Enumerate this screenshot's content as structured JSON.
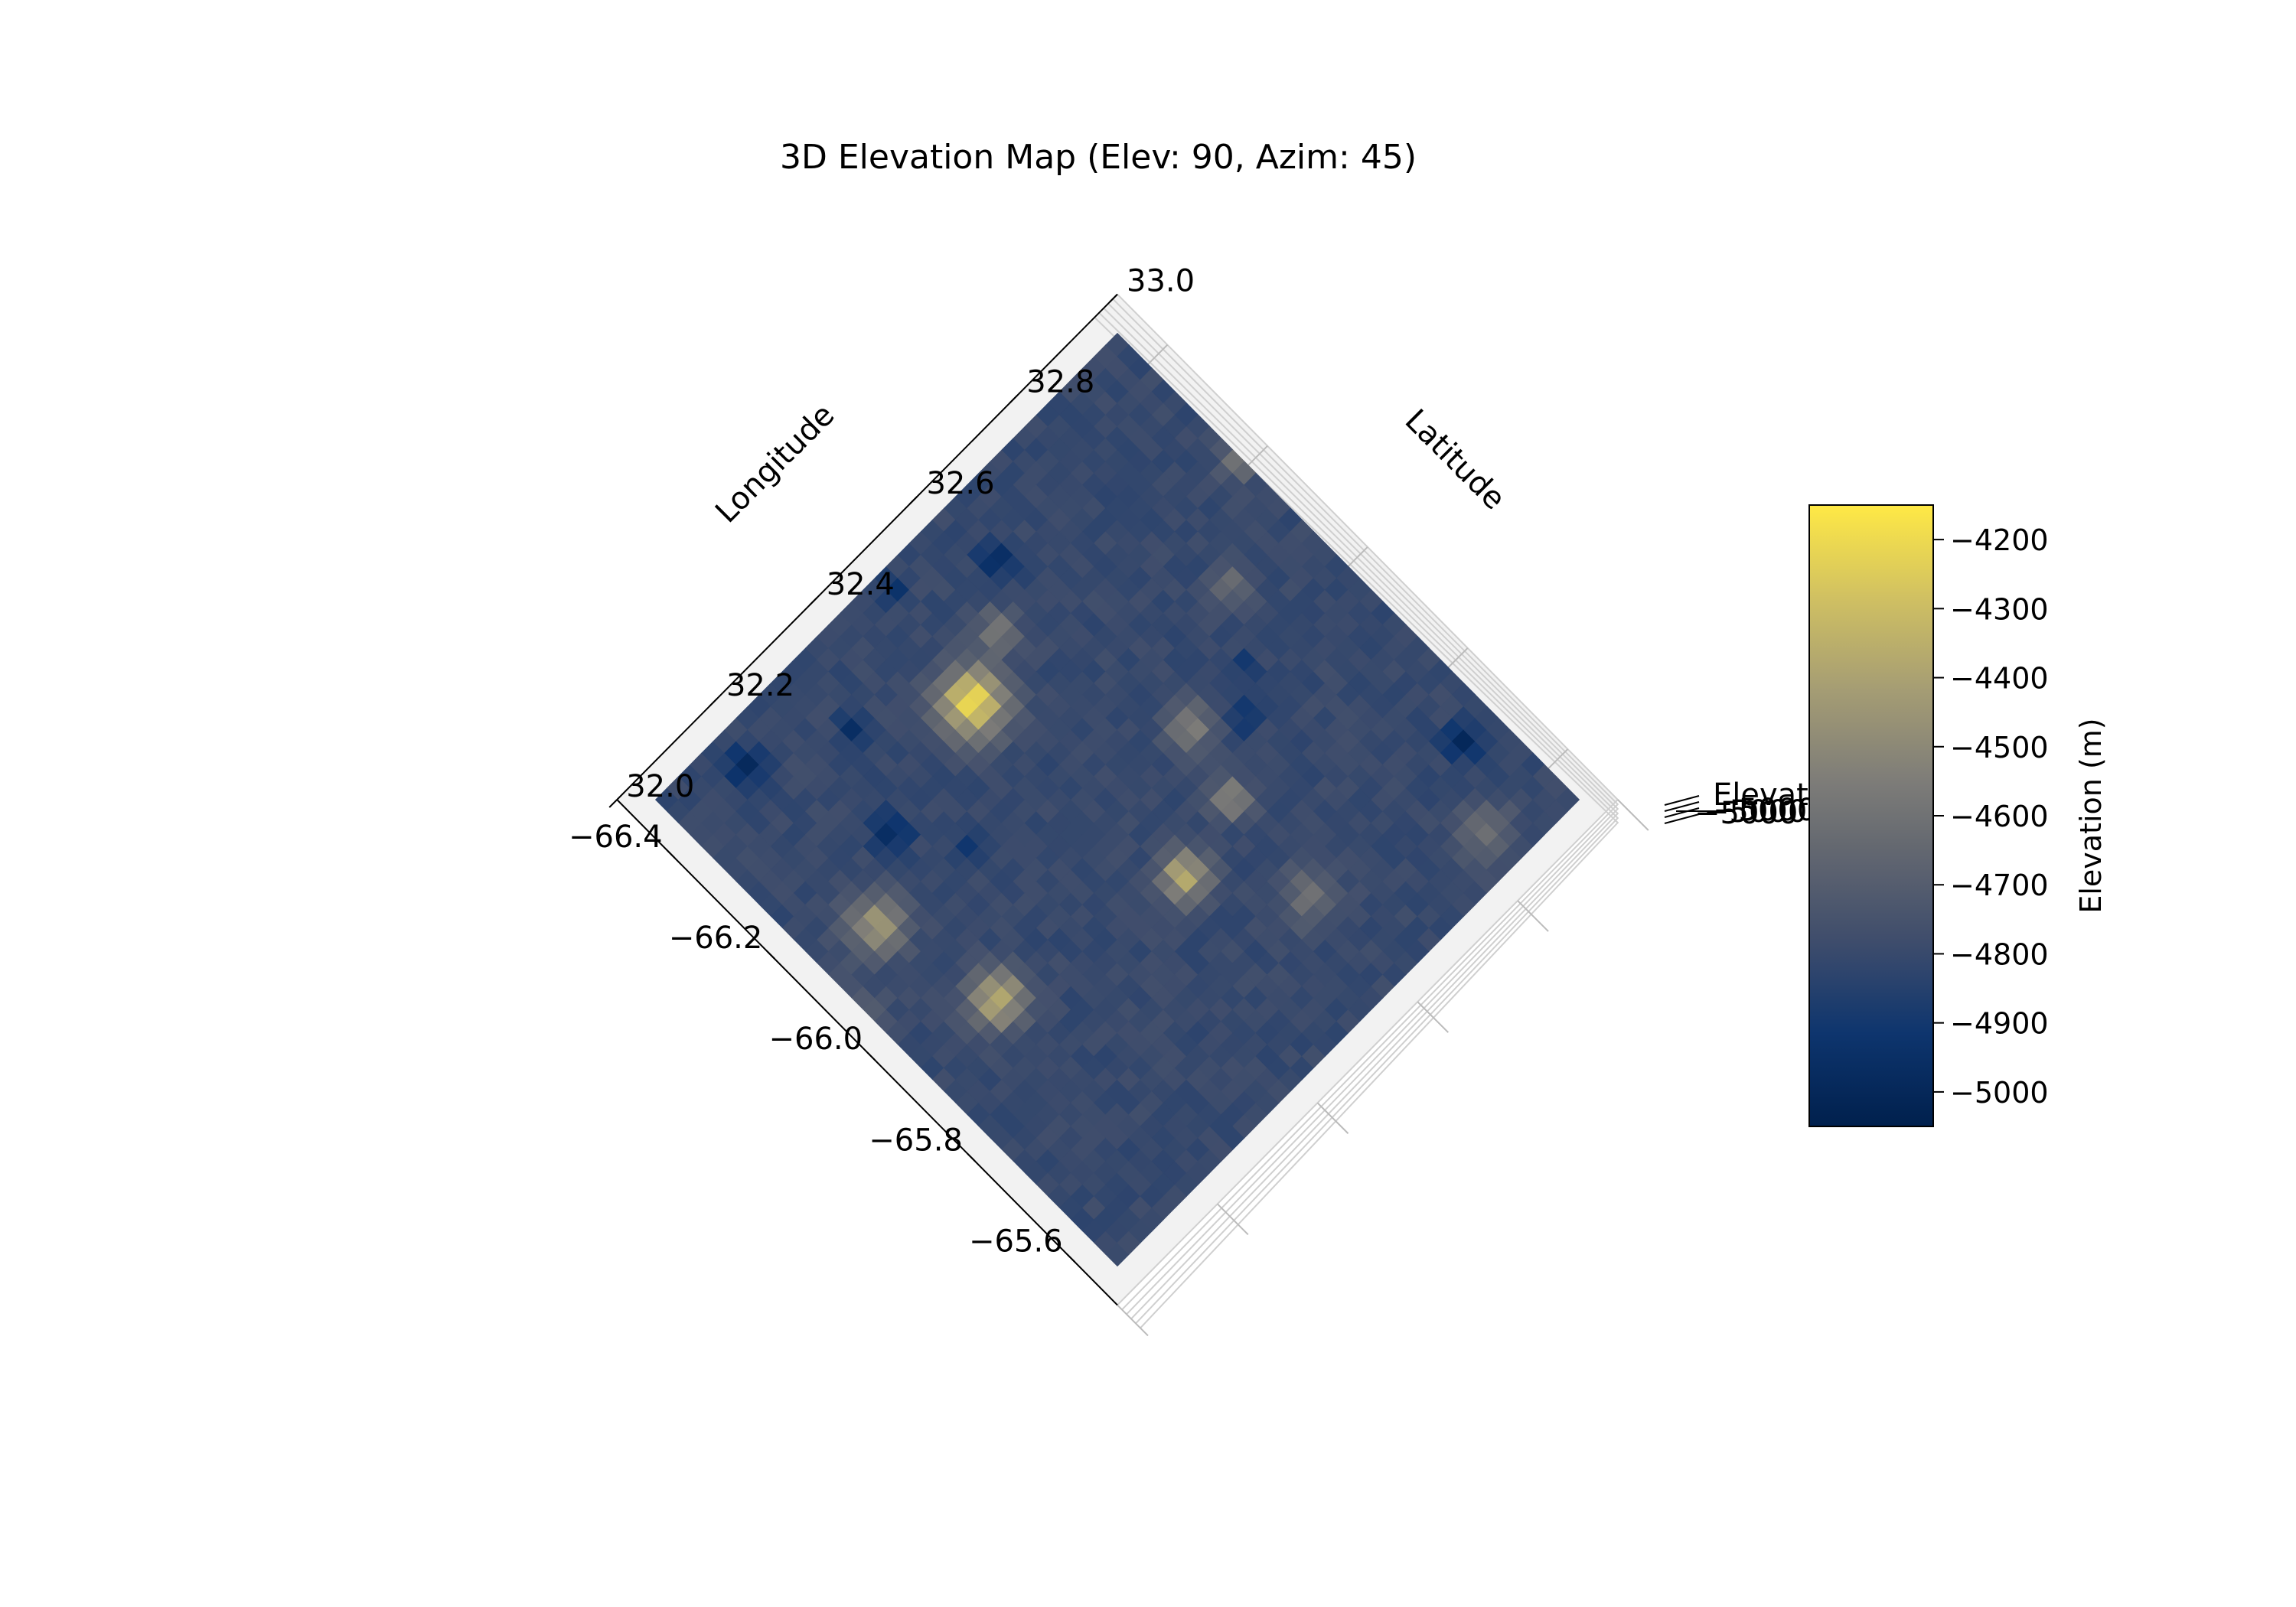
{
  "chart_data": {
    "type": "surface3d",
    "title": "3D Elevation Map (Elev: 90, Azim: 45)",
    "view": {
      "elev": 90,
      "azim": 45
    },
    "colormap": "cividis",
    "grid": true,
    "axes": {
      "longitude": {
        "label": "Longitude",
        "range": [
          -66.5,
          -65.5
        ],
        "ticks": [
          -66.4,
          -66.2,
          -66.0,
          -65.8,
          -65.6
        ],
        "tick_labels": [
          "−66.4",
          "−66.2",
          "−66.0",
          "−65.8",
          "−65.6"
        ]
      },
      "latitude": {
        "label": "Latitude",
        "range": [
          32.0,
          33.0
        ],
        "ticks": [
          32.0,
          32.2,
          32.4,
          32.6,
          32.8,
          33.0
        ],
        "tick_labels": [
          "32.0",
          "32.2",
          "32.4",
          "32.6",
          "32.8",
          "33.0"
        ]
      },
      "elevation": {
        "label": "Elevat",
        "visible_tick_text": "−5000",
        "range": [
          -5050,
          -4150
        ]
      }
    },
    "colorbar": {
      "label": "Elevation (m)",
      "range": [
        -5050,
        -4150
      ],
      "ticks": [
        -4200,
        -4300,
        -4400,
        -4500,
        -4600,
        -4700,
        -4800,
        -4900,
        -5000
      ],
      "tick_labels": [
        "−4200",
        "−4300",
        "−4400",
        "−4500",
        "−4600",
        "−4700",
        "−4800",
        "−4900",
        "−5000"
      ]
    },
    "surface": {
      "base_elevation": -4800,
      "features": [
        {
          "lon": -66.25,
          "lat": 32.45,
          "elevation": -4180,
          "spread": 0.035
        },
        {
          "lon": -65.92,
          "lat": 32.17,
          "elevation": -4350,
          "spread": 0.03
        },
        {
          "lon": -65.85,
          "lat": 32.49,
          "elevation": -4340,
          "spread": 0.025
        },
        {
          "lon": -66.12,
          "lat": 32.12,
          "elevation": -4440,
          "spread": 0.03
        },
        {
          "lon": -66.0,
          "lat": 32.65,
          "elevation": -4530,
          "spread": 0.025
        },
        {
          "lon": -66.1,
          "lat": 32.84,
          "elevation": -4600,
          "spread": 0.02
        },
        {
          "lon": -65.88,
          "lat": 32.62,
          "elevation": -4500,
          "spread": 0.02
        },
        {
          "lon": -66.3,
          "lat": 32.55,
          "elevation": -4550,
          "spread": 0.02
        },
        {
          "lon": -66.22,
          "lat": 32.98,
          "elevation": -4560,
          "spread": 0.02
        },
        {
          "lon": -65.7,
          "lat": 32.6,
          "elevation": -4620,
          "spread": 0.03
        },
        {
          "lon": -65.58,
          "lat": 32.85,
          "elevation": -4630,
          "spread": 0.03
        },
        {
          "lon": -66.05,
          "lat": 32.0,
          "elevation": -4650,
          "spread": 0.03
        },
        {
          "lon": -66.42,
          "lat": 32.15,
          "elevation": -4990,
          "spread": 0.02
        },
        {
          "lon": -66.2,
          "lat": 32.23,
          "elevation": -4980,
          "spread": 0.02
        },
        {
          "lon": -66.35,
          "lat": 32.3,
          "elevation": -4970,
          "spread": 0.015
        },
        {
          "lon": -66.37,
          "lat": 32.62,
          "elevation": -4970,
          "spread": 0.02
        },
        {
          "lon": -66.1,
          "lat": 32.3,
          "elevation": -4940,
          "spread": 0.015
        },
        {
          "lon": -65.95,
          "lat": 32.72,
          "elevation": -4950,
          "spread": 0.015
        },
        {
          "lon": -66.0,
          "lat": 32.77,
          "elevation": -4930,
          "spread": 0.012
        },
        {
          "lon": -65.7,
          "lat": 32.92,
          "elevation": -4970,
          "spread": 0.02
        },
        {
          "lon": -66.45,
          "lat": 32.48,
          "elevation": -4930,
          "spread": 0.015
        }
      ]
    }
  }
}
